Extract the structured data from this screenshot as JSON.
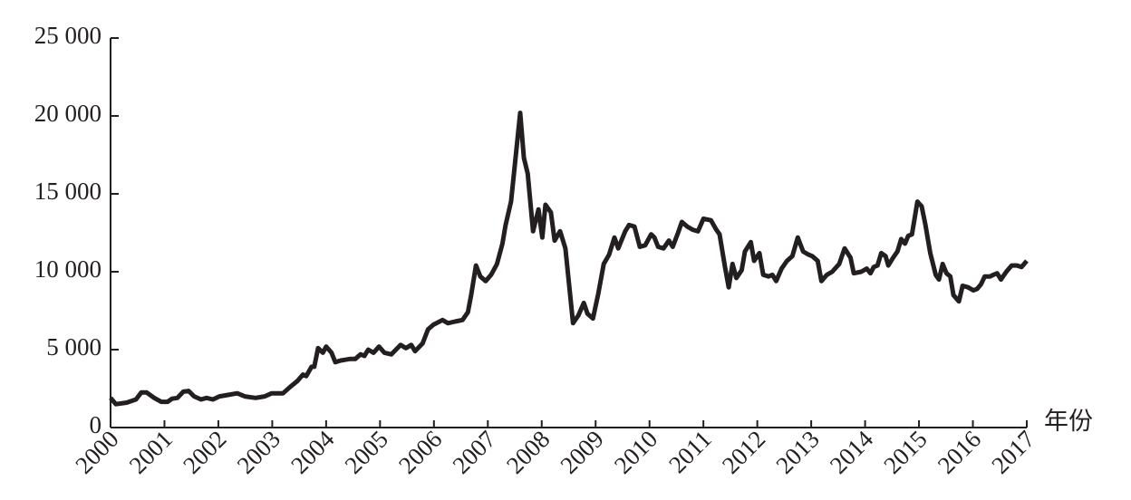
{
  "chart_data": {
    "type": "line",
    "x_label": "年份",
    "color": "#231f20",
    "xlim": [
      2000,
      2017
    ],
    "xticks": [
      2000,
      2001,
      2002,
      2003,
      2004,
      2005,
      2006,
      2007,
      2008,
      2009,
      2010,
      2011,
      2012,
      2013,
      2014,
      2015,
      2016,
      2017
    ],
    "ylim": [
      0,
      25000
    ],
    "yticks": [
      0,
      {
        "value": 5000,
        "label": "5 000"
      },
      {
        "value": 10000,
        "label": "10 000"
      },
      {
        "value": 15000,
        "label": "15 000"
      },
      {
        "value": 20000,
        "label": "20 000"
      },
      {
        "value": 25000,
        "label": "25 000"
      }
    ],
    "grid": false,
    "x": [
      2000.0,
      2000.1,
      2000.3,
      2000.47,
      2000.57,
      2000.67,
      2000.81,
      2000.94,
      2001.06,
      2001.14,
      2001.24,
      2001.35,
      2001.45,
      2001.55,
      2001.68,
      2001.78,
      2001.9,
      2002.02,
      2002.19,
      2002.35,
      2002.49,
      2002.69,
      2002.86,
      2002.99,
      2003.2,
      2003.33,
      2003.47,
      2003.57,
      2003.63,
      2003.73,
      2003.78,
      2003.85,
      2003.94,
      2004.0,
      2004.1,
      2004.17,
      2004.27,
      2004.44,
      2004.54,
      2004.64,
      2004.71,
      2004.78,
      2004.88,
      2004.98,
      2005.08,
      2005.21,
      2005.38,
      2005.48,
      2005.58,
      2005.65,
      2005.79,
      2005.89,
      2005.99,
      2006.16,
      2006.26,
      2006.39,
      2006.53,
      2006.63,
      2006.69,
      2006.78,
      2006.86,
      2006.96,
      2007.06,
      2007.17,
      2007.27,
      2007.33,
      2007.43,
      2007.5,
      2007.6,
      2007.67,
      2007.74,
      2007.84,
      2007.94,
      2008.01,
      2008.07,
      2008.17,
      2008.24,
      2008.34,
      2008.44,
      2008.58,
      2008.68,
      2008.78,
      2008.85,
      2008.95,
      2009.05,
      2009.15,
      2009.25,
      2009.35,
      2009.42,
      2009.55,
      2009.62,
      2009.72,
      2009.82,
      2009.92,
      2010.03,
      2010.09,
      2010.16,
      2010.26,
      2010.36,
      2010.43,
      2010.53,
      2010.6,
      2010.7,
      2010.8,
      2010.9,
      2011.0,
      2011.14,
      2011.24,
      2011.3,
      2011.4,
      2011.47,
      2011.54,
      2011.61,
      2011.71,
      2011.77,
      2011.88,
      2011.94,
      2012.04,
      2012.11,
      2012.21,
      2012.28,
      2012.35,
      2012.45,
      2012.55,
      2012.65,
      2012.75,
      2012.85,
      2012.95,
      2013.02,
      2013.12,
      2013.19,
      2013.29,
      2013.39,
      2013.52,
      2013.62,
      2013.73,
      2013.79,
      2013.93,
      2014.03,
      2014.1,
      2014.16,
      2014.23,
      2014.3,
      2014.38,
      2014.43,
      2014.52,
      2014.6,
      2014.67,
      2014.74,
      2014.8,
      2014.87,
      2014.97,
      2015.05,
      2015.12,
      2015.21,
      2015.31,
      2015.37,
      2015.44,
      2015.51,
      2015.58,
      2015.64,
      2015.74,
      2015.81,
      2015.91,
      2016.01,
      2016.08,
      2016.15,
      2016.22,
      2016.32,
      2016.38,
      2016.45,
      2016.52,
      2016.62,
      2016.72,
      2016.82,
      2016.9,
      2017.0
    ],
    "values": [
      1900,
      1500,
      1600,
      1800,
      2250,
      2250,
      1900,
      1650,
      1650,
      1850,
      1900,
      2300,
      2350,
      2000,
      1800,
      1900,
      1800,
      2000,
      2100,
      2200,
      2000,
      1900,
      2000,
      2200,
      2200,
      2600,
      3000,
      3400,
      3300,
      3900,
      3900,
      5100,
      4800,
      5200,
      4800,
      4200,
      4300,
      4400,
      4400,
      4700,
      4600,
      5000,
      4800,
      5200,
      4800,
      4700,
      5300,
      5100,
      5300,
      4900,
      5400,
      6300,
      6600,
      6900,
      6700,
      6800,
      6900,
      7400,
      8500,
      10400,
      9700,
      9400,
      9800,
      10500,
      11800,
      13000,
      14500,
      16800,
      20200,
      17300,
      16300,
      12600,
      14000,
      12200,
      14300,
      13800,
      12000,
      12600,
      11500,
      6700,
      7200,
      8000,
      7300,
      7000,
      8600,
      10500,
      11100,
      12200,
      11500,
      12600,
      13000,
      12900,
      11600,
      11700,
      12400,
      12200,
      11600,
      11500,
      12000,
      11600,
      12500,
      13200,
      12900,
      12700,
      12600,
      13400,
      13300,
      12700,
      12400,
      10300,
      9000,
      10500,
      9600,
      10100,
      11300,
      11900,
      10700,
      11200,
      9800,
      9700,
      9800,
      9400,
      10200,
      10700,
      11000,
      12200,
      11300,
      11100,
      11000,
      10700,
      9400,
      9800,
      10000,
      10500,
      11500,
      10900,
      9900,
      10000,
      10200,
      9900,
      10300,
      10400,
      11200,
      11000,
      10400,
      10900,
      11300,
      12100,
      11800,
      12300,
      12400,
      14500,
      14200,
      13000,
      11200,
      9800,
      9500,
      10500,
      9900,
      9700,
      8500,
      8100,
      9100,
      9000,
      8800,
      8900,
      9200,
      9700,
      9700,
      9800,
      9900,
      9500,
      10000,
      10400,
      10400,
      10300,
      10700
    ]
  }
}
